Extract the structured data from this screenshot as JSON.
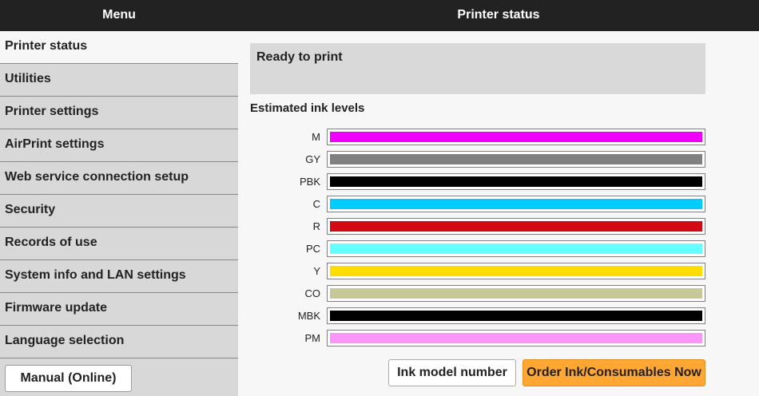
{
  "header": {
    "menu_title": "Menu",
    "page_title": "Printer status"
  },
  "sidebar": {
    "items": [
      {
        "label": "Printer status",
        "active": true
      },
      {
        "label": "Utilities"
      },
      {
        "label": "Printer settings"
      },
      {
        "label": "AirPrint settings"
      },
      {
        "label": "Web service connection setup"
      },
      {
        "label": "Security"
      },
      {
        "label": "Records of use"
      },
      {
        "label": "System info and LAN settings"
      },
      {
        "label": "Firmware update"
      },
      {
        "label": "Language selection"
      }
    ],
    "manual_button": "Manual (Online)"
  },
  "main": {
    "status": "Ready to print",
    "ink_heading": "Estimated ink levels",
    "inks": [
      {
        "label": "M",
        "color": "#f000ff",
        "level": 100
      },
      {
        "label": "GY",
        "color": "#808080",
        "level": 100
      },
      {
        "label": "PBK",
        "color": "#000000",
        "level": 100
      },
      {
        "label": "C",
        "color": "#00ccff",
        "level": 100
      },
      {
        "label": "R",
        "color": "#d20a14",
        "level": 100
      },
      {
        "label": "PC",
        "color": "#66ffff",
        "level": 100
      },
      {
        "label": "Y",
        "color": "#ffdd00",
        "level": 100
      },
      {
        "label": "CO",
        "color": "#c8c896",
        "level": 100
      },
      {
        "label": "MBK",
        "color": "#000000",
        "level": 100
      },
      {
        "label": "PM",
        "color": "#fa96fa",
        "level": 100
      }
    ],
    "ink_model_button": "Ink model number",
    "order_button": "Order Ink/Consumables Now"
  }
}
